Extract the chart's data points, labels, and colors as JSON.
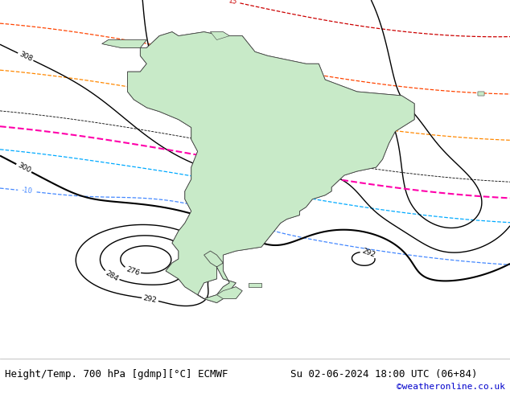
{
  "title_left": "Height/Temp. 700 hPa [gdmp][°C] ECMWF",
  "title_right": "Su 02-06-2024 18:00 UTC (06+84)",
  "credit": "©weatheronline.co.uk",
  "bg_color": "#e0e0e0",
  "land_color": "#c8eac8",
  "border_color": "#555555",
  "fig_width": 6.34,
  "fig_height": 4.9,
  "dpi": 100,
  "title_fontsize": 9,
  "credit_fontsize": 8,
  "credit_color": "#0000cc"
}
